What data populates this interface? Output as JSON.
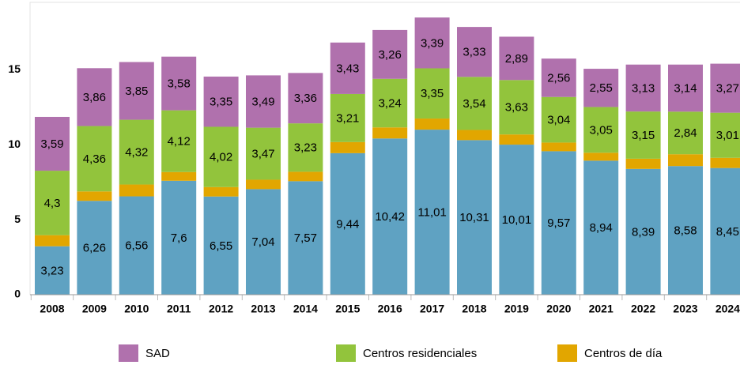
{
  "chart_data": {
    "type": "stacked_bar",
    "categories": [
      "2008",
      "2009",
      "2010",
      "2011",
      "2012",
      "2013",
      "2014",
      "2015",
      "2016",
      "2017",
      "2018",
      "2019",
      "2020",
      "2021",
      "2022",
      "2023",
      "2024"
    ],
    "series": [
      {
        "color": "#5fa2c2",
        "values": [
          3.23,
          6.26,
          6.56,
          7.6,
          6.55,
          7.04,
          7.57,
          9.44,
          10.42,
          11.01,
          10.31,
          10.01,
          9.57,
          8.94,
          8.39,
          8.58,
          8.45
        ],
        "value_labels": [
          "3,23",
          "6,26",
          "6,56",
          "7,6",
          "6,55",
          "7,04",
          "7,57",
          "9,44",
          "10,42",
          "11,01",
          "10,31",
          "10,01",
          "9,57",
          "8,94",
          "8,39",
          "8,58",
          "8,45"
        ]
      },
      {
        "name": "Centros de día",
        "color": "#e2a600",
        "values": [
          0.74,
          0.63,
          0.79,
          0.58,
          0.63,
          0.63,
          0.63,
          0.74,
          0.74,
          0.74,
          0.68,
          0.68,
          0.58,
          0.53,
          0.68,
          0.79,
          0.68
        ]
      },
      {
        "name": "Centros residenciales",
        "color": "#92c43c",
        "values": [
          4.3,
          4.36,
          4.32,
          4.12,
          4.02,
          3.47,
          3.23,
          3.21,
          3.24,
          3.35,
          3.54,
          3.63,
          3.04,
          3.05,
          3.15,
          2.84,
          3.01
        ],
        "value_labels": [
          "4,3",
          "4,36",
          "4,32",
          "4,12",
          "4,02",
          "3,47",
          "3,23",
          "3,21",
          "3,24",
          "3,35",
          "3,54",
          "3,63",
          "3,04",
          "3,05",
          "3,15",
          "2,84",
          "3,01"
        ]
      },
      {
        "name": "SAD",
        "color": "#b071ad",
        "values": [
          3.59,
          3.86,
          3.85,
          3.58,
          3.35,
          3.49,
          3.36,
          3.43,
          3.26,
          3.39,
          3.33,
          2.89,
          2.56,
          2.55,
          3.13,
          3.14,
          3.27
        ],
        "value_labels": [
          "3,59",
          "3,86",
          "3,85",
          "3,58",
          "3,35",
          "3,49",
          "3,36",
          "3,43",
          "3,26",
          "3,39",
          "3,33",
          "2,89",
          "2,56",
          "2,55",
          "3,13",
          "3,14",
          "3,27"
        ]
      }
    ],
    "ylim": [
      0,
      19.5
    ],
    "yticks": [
      0,
      5,
      10,
      15
    ]
  }
}
